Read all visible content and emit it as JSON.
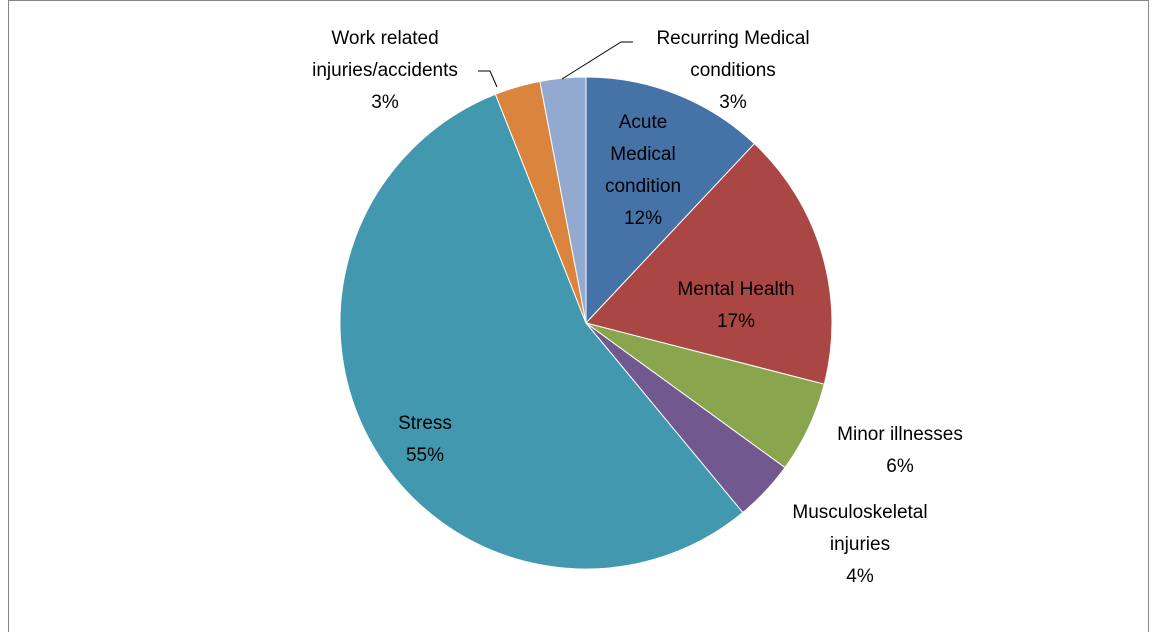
{
  "chart_data": {
    "type": "pie",
    "categories": [
      "Acute Medical condition",
      "Mental Health",
      "Minor illnesses",
      "Musculoskeletal injuries",
      "Stress",
      "Work related injuries/accidents",
      "Recurring Medical conditions"
    ],
    "values": [
      12,
      17,
      6,
      4,
      55,
      3,
      3
    ],
    "value_labels": [
      "12%",
      "17%",
      "6%",
      "4%",
      "55%",
      "3%",
      "3%"
    ],
    "colors": [
      "#4572a7",
      "#aa4643",
      "#89a54e",
      "#71588f",
      "#4198af",
      "#db843d",
      "#93a9cf"
    ]
  }
}
